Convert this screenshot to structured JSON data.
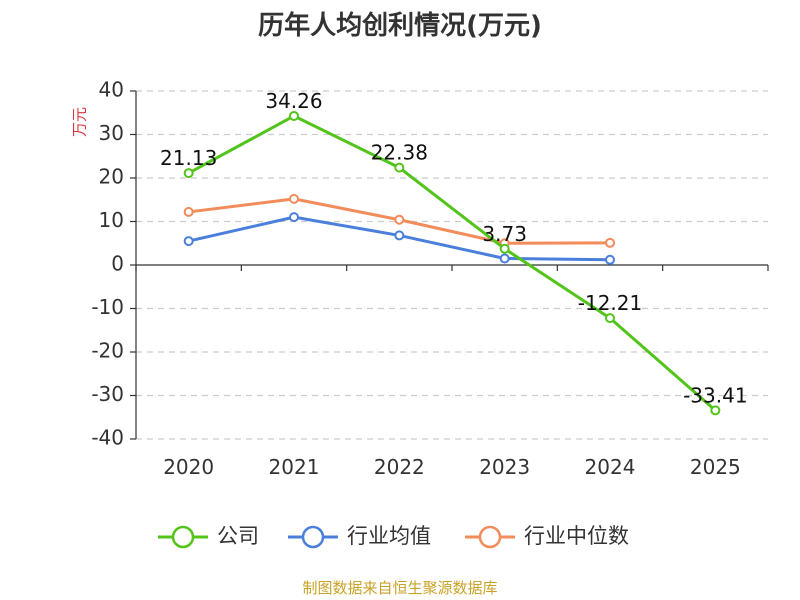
{
  "chart_data": {
    "type": "line",
    "title": "历年人均创利情况(万元)",
    "ylabel": "万元",
    "categories": [
      "2020",
      "2021",
      "2022",
      "2023",
      "2024",
      "2025"
    ],
    "ylim": [
      -40,
      40
    ],
    "yticks": [
      40,
      30,
      20,
      10,
      0,
      -10,
      -20,
      -30,
      -40
    ],
    "grid": true,
    "legend_position": "bottom",
    "series": [
      {
        "name": "公司",
        "color": "#52c41a",
        "values": [
          21.13,
          34.26,
          22.38,
          3.73,
          -12.21,
          -33.41
        ],
        "labels": [
          "21.13",
          "34.26",
          "22.38",
          "3.73",
          "-12.21",
          "-33.41"
        ]
      },
      {
        "name": "行业均值",
        "color": "#4a7fdb",
        "values": [
          5.5,
          11.0,
          6.8,
          1.5,
          1.2,
          null
        ]
      },
      {
        "name": "行业中位数",
        "color": "#f28c5a",
        "values": [
          12.2,
          15.2,
          10.4,
          5.0,
          5.1,
          null
        ]
      }
    ]
  },
  "source": "制图数据来自恒生聚源数据库"
}
